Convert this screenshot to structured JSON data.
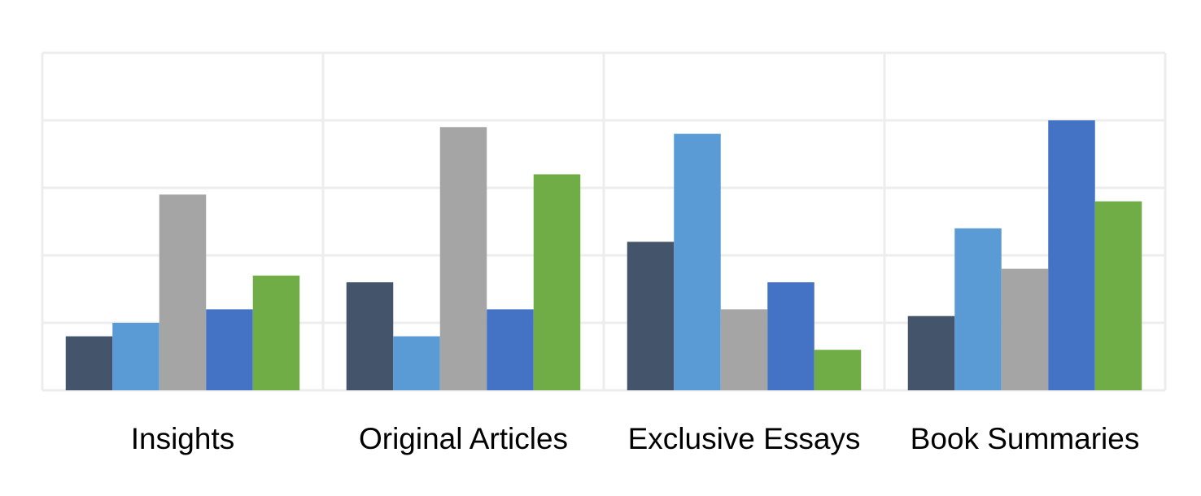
{
  "chart_data": {
    "type": "bar",
    "title": "",
    "xlabel": "",
    "ylabel": "",
    "categories": [
      "Insights",
      "Original Articles",
      "Exclusive Essays",
      "Book Summaries"
    ],
    "ylim": [
      0,
      5
    ],
    "grid": true,
    "legend": "none",
    "series": [
      {
        "color": "#44546A",
        "values": [
          0.8,
          1.6,
          2.2,
          1.1
        ]
      },
      {
        "color": "#5B9BD5",
        "values": [
          1.0,
          0.8,
          3.8,
          2.4
        ]
      },
      {
        "color": "#A5A5A5",
        "values": [
          2.9,
          3.9,
          1.2,
          1.8
        ]
      },
      {
        "color": "#4472C4",
        "values": [
          1.2,
          1.2,
          1.6,
          4.0
        ]
      },
      {
        "color": "#70AD47",
        "values": [
          1.7,
          3.2,
          0.6,
          2.8
        ]
      }
    ]
  }
}
